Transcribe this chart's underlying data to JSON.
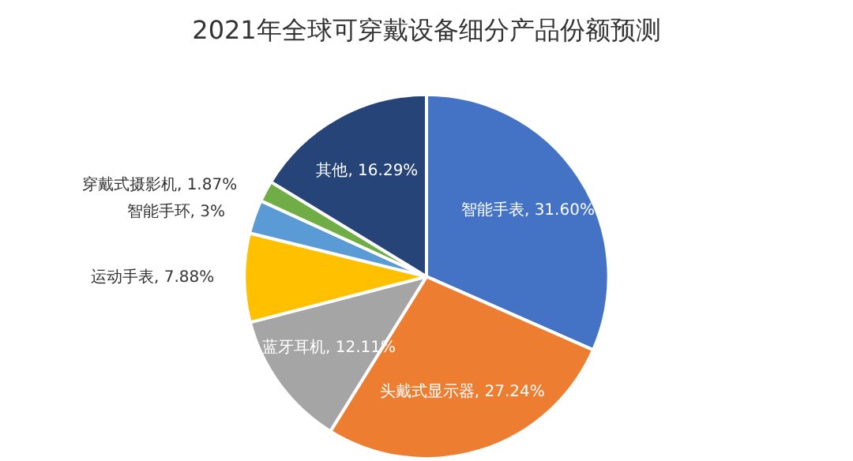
{
  "chart_data": {
    "type": "pie",
    "title": "2021年全球可穿戴设备细分产品份额预测",
    "categories": [
      "智能手表",
      "头戴式显示器",
      "蓝牙耳机",
      "运动手表",
      "智能手环",
      "穿戴式摄影机",
      "其他"
    ],
    "values": [
      31.6,
      27.24,
      12.11,
      7.88,
      3,
      1.87,
      16.29
    ],
    "value_labels": [
      "31.60%",
      "27.24%",
      "12.11%",
      "7.88%",
      "3%",
      "1.87%",
      "16.29%"
    ],
    "colors": [
      "#4472c4",
      "#ed7d31",
      "#a5a5a5",
      "#ffc000",
      "#5b9bd5",
      "#70ad47",
      "#264478"
    ],
    "legend": false
  }
}
